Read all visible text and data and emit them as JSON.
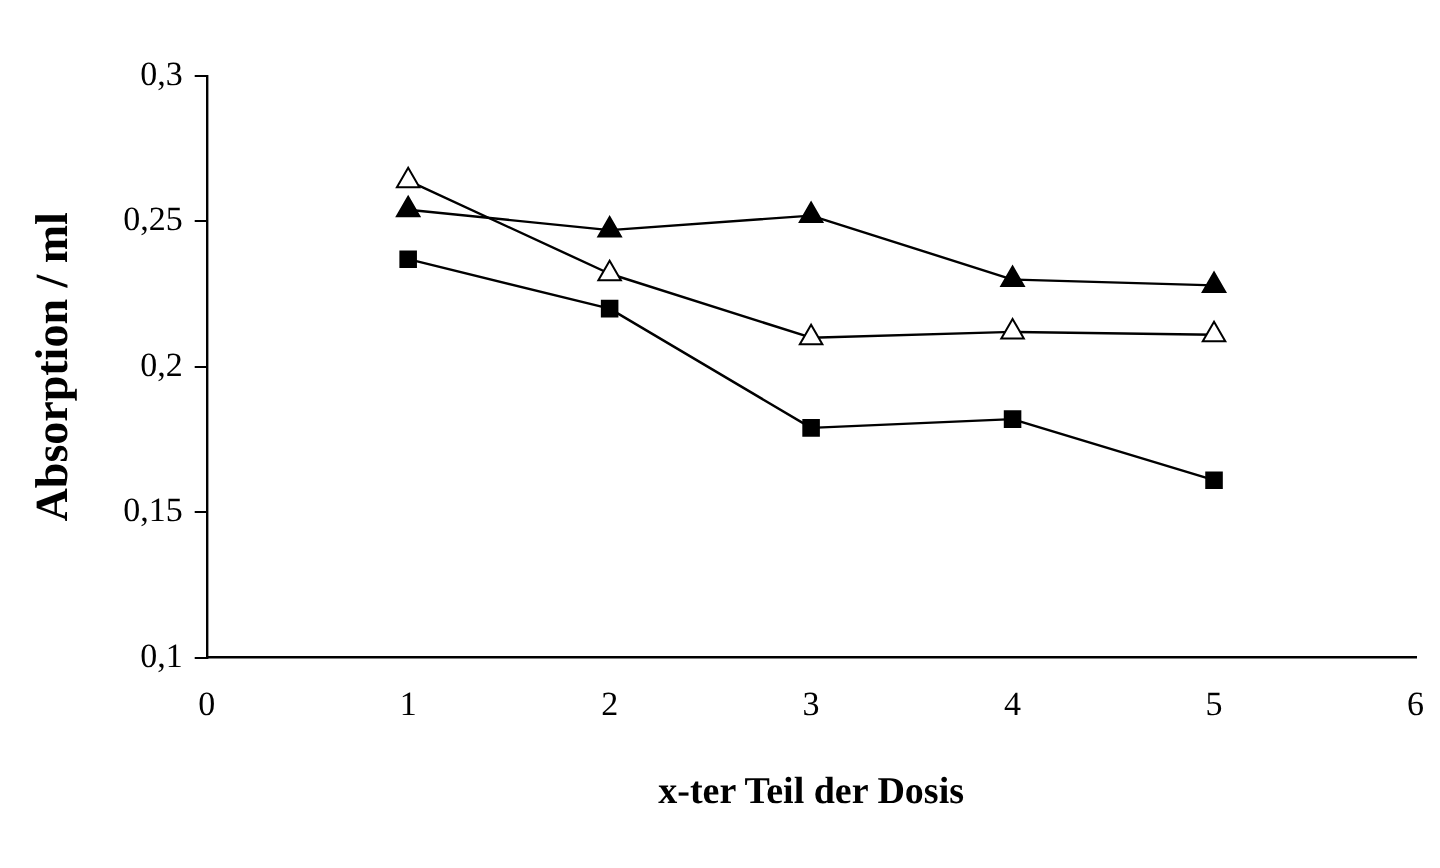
{
  "chart_data": {
    "type": "line",
    "xlabel": "x-ter Teil der Dosis",
    "ylabel": "Absorption / ml",
    "x": [
      1,
      2,
      3,
      4,
      5
    ],
    "series": [
      {
        "color": "#000000",
        "marker": "triangle",
        "values": [
          0.254,
          0.247,
          0.252,
          0.23,
          0.228
        ]
      },
      {
        "color": "#000000",
        "marker": "triangle",
        "values": [
          0.264,
          0.232,
          0.21,
          0.212,
          0.211
        ]
      },
      {
        "color": "#000000",
        "marker": "square",
        "values": [
          0.237,
          0.22,
          0.179,
          0.182,
          0.161
        ]
      }
    ],
    "xlim": [
      0,
      6
    ],
    "xticks": [
      0,
      1,
      2,
      3,
      4,
      5,
      6
    ],
    "ylim": [
      0.1,
      0.3
    ],
    "yticks": [
      {
        "value": 0.1,
        "label": "0,1"
      },
      {
        "value": 0.15,
        "label": "0,15"
      },
      {
        "value": 0.2,
        "label": "0,2"
      },
      {
        "value": 0.25,
        "label": "0,25"
      },
      {
        "value": 0.3,
        "label": "0,3"
      }
    ],
    "grid": false,
    "legend": false,
    "line_style": "solid"
  }
}
